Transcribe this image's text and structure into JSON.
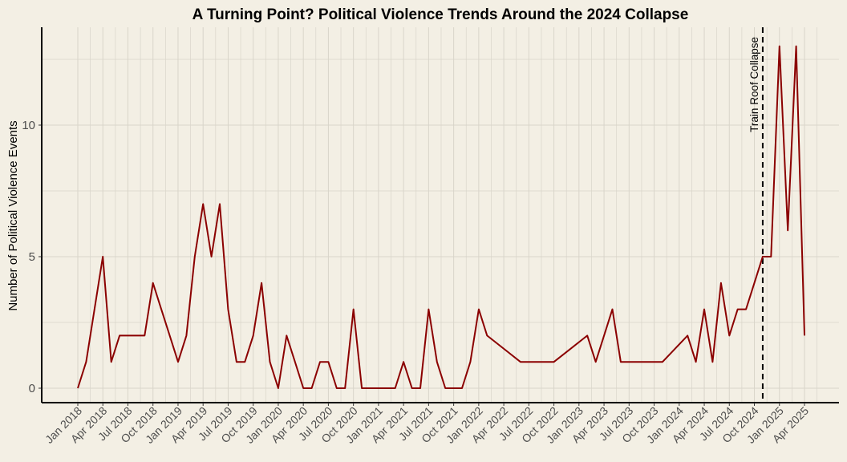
{
  "chart_data": {
    "type": "line",
    "title": "A Turning Point? Political Violence Trends Around the 2024 Collapse",
    "xlabel": "",
    "ylabel": "Number of Political Violence Events",
    "ylim": [
      -0.6,
      13.6
    ],
    "yticks": [
      0,
      5,
      10
    ],
    "grid": true,
    "line_color": "#8b0000",
    "background": "#f3efe4",
    "x_tick_labels": [
      "Jan 2018",
      "Apr 2018",
      "Jul 2018",
      "Oct 2018",
      "Jan 2019",
      "Apr 2019",
      "Jul 2019",
      "Oct 2019",
      "Jan 2020",
      "Apr 2020",
      "Jul 2020",
      "Oct 2020",
      "Jan 2021",
      "Apr 2021",
      "Jul 2021",
      "Oct 2021",
      "Jan 2022",
      "Apr 2022",
      "Jul 2022",
      "Oct 2022",
      "Jan 2023",
      "Apr 2023",
      "Jul 2023",
      "Oct 2023",
      "Jan 2024",
      "Apr 2024",
      "Jul 2024",
      "Oct 2024",
      "Jan 2025",
      "Apr 2025"
    ],
    "series": [
      {
        "x": [
          "2018-01",
          "2018-02",
          "2018-03",
          "2018-04",
          "2018-05",
          "2018-06",
          "2018-07",
          "2018-08",
          "2018-09",
          "2018-10",
          "2018-11",
          "2018-12",
          "2019-01",
          "2019-02",
          "2019-03",
          "2019-04",
          "2019-05",
          "2019-06",
          "2019-07",
          "2019-08",
          "2019-09",
          "2019-10",
          "2019-11",
          "2019-12",
          "2020-01",
          "2020-02",
          "2020-03",
          "2020-04",
          "2020-05",
          "2020-06",
          "2020-07",
          "2020-08",
          "2020-09",
          "2020-10",
          "2020-11",
          "2020-12",
          "2021-01",
          "2021-02",
          "2021-03",
          "2021-04",
          "2021-05",
          "2021-06",
          "2021-07",
          "2021-08",
          "2021-09",
          "2021-10",
          "2021-11",
          "2021-12",
          "2022-01",
          "2022-02",
          "2022-06",
          "2022-10",
          "2022-12",
          "2023-02",
          "2023-03",
          "2023-04",
          "2023-05",
          "2023-06",
          "2023-11",
          "2024-02",
          "2024-03",
          "2024-04",
          "2024-05",
          "2024-06",
          "2024-07",
          "2024-08",
          "2024-09",
          "2024-10",
          "2024-11",
          "2024-12",
          "2025-01",
          "2025-02",
          "2025-03",
          "2025-04"
        ],
        "values": [
          0,
          1,
          3,
          5,
          1,
          2,
          2,
          2,
          2,
          4,
          3,
          2,
          1,
          2,
          5,
          7,
          5,
          7,
          3,
          1,
          1,
          2,
          4,
          1,
          0,
          2,
          1,
          0,
          0,
          1,
          1,
          0,
          0,
          3,
          0,
          0,
          0,
          0,
          0,
          1,
          0,
          0,
          3,
          1,
          0,
          0,
          0,
          1,
          3,
          2,
          1,
          1,
          1.5,
          2,
          1,
          2,
          3,
          1,
          1,
          2,
          1,
          3,
          1,
          4,
          2,
          3,
          3,
          4,
          5,
          5,
          13,
          6,
          13,
          2
        ]
      }
    ],
    "annotations": [
      {
        "x": "2024-11",
        "label": "Train Roof Collapse",
        "style": "dashed vertical line"
      }
    ]
  }
}
